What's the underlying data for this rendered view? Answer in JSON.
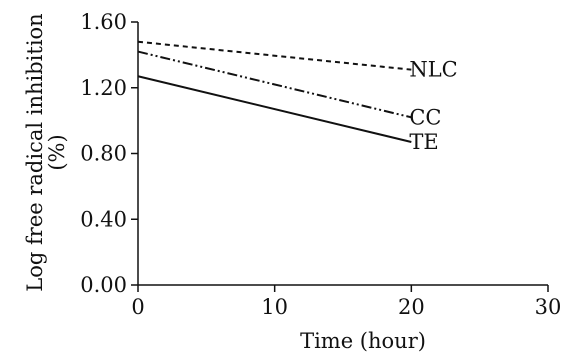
{
  "chart_data": {
    "type": "line",
    "title": "",
    "xlabel": "Time (hour)",
    "ylabel_lines": [
      "Log free radical inhibition",
      "(%)"
    ],
    "xlim": [
      0,
      30
    ],
    "ylim": [
      0,
      1.6
    ],
    "x_ticks": [
      0,
      10,
      20,
      30
    ],
    "x_tick_labels": [
      "0",
      "10",
      "20",
      "30"
    ],
    "y_ticks": [
      0,
      0.4,
      0.8,
      1.2,
      1.6
    ],
    "y_tick_labels": [
      "0.00",
      "0.40",
      "0.80",
      "1.20",
      "1.60"
    ],
    "grid": false,
    "legend": "none",
    "series": [
      {
        "name": "NLC",
        "style": "dashed",
        "x": [
          0,
          20
        ],
        "y": [
          1.48,
          1.31
        ]
      },
      {
        "name": "CC",
        "style": "dash-dot-dot",
        "x": [
          0,
          20
        ],
        "y": [
          1.42,
          1.02
        ]
      },
      {
        "name": "TE",
        "style": "solid",
        "x": [
          0,
          20
        ],
        "y": [
          1.27,
          0.87
        ]
      }
    ]
  }
}
